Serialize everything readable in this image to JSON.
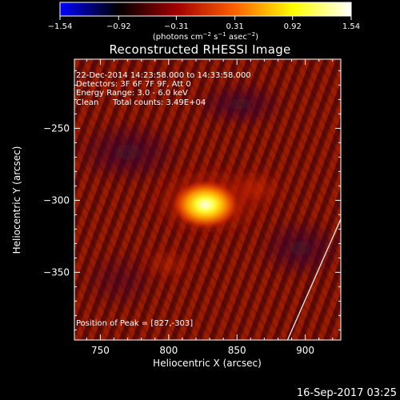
{
  "title": "Reconstructed RHESSI Image",
  "footer_timestamp": "16-Sep-2017 03:25",
  "colorbar": {
    "ticks": [
      "−1.54",
      "−0.92",
      "−0.31",
      "0.31",
      "0.92",
      "1.54"
    ],
    "units_prefix": "(photons cm",
    "units_sup1": "−2",
    "units_mid": " s",
    "units_sup2": "−1",
    "units_mid2": " asec",
    "units_sup3": "−2",
    "units_suffix": ")",
    "range": [
      -1.54,
      1.54
    ],
    "colormap": [
      "#0000ff",
      "#000000",
      "#a00000",
      "#ff6000",
      "#ffff00",
      "#ffffff"
    ]
  },
  "info": {
    "time_range": "22-Dec-2014 14:23:58.000 to 14:33:58.000",
    "detectors": "Detectors: 3F 6F 7F 9F, Att 0",
    "energy_range": "Energy Range: 3.0 - 6.0 keV",
    "algorithm": "Clean",
    "total_counts": "Total counts: 3.49E+04",
    "peak_position": "Position of Peak = [827,-303]"
  },
  "chart_data": {
    "type": "heatmap",
    "xlabel": "Heliocentric X (arcsec)",
    "ylabel": "Heliocentric Y (arcsec)",
    "xlim": [
      731,
      926
    ],
    "ylim": [
      -397,
      -202
    ],
    "xticks": [
      750,
      800,
      850,
      900
    ],
    "yticks": [
      -250,
      -300,
      -350
    ],
    "xtick_labels": [
      "750",
      "800",
      "850",
      "900"
    ],
    "ytick_labels": [
      "−250",
      "−300",
      "−350"
    ],
    "peak": {
      "x": 827,
      "y": -303
    },
    "limb_line": [
      {
        "x": 926,
        "y": -313
      },
      {
        "x": 887,
        "y": -397
      }
    ]
  }
}
